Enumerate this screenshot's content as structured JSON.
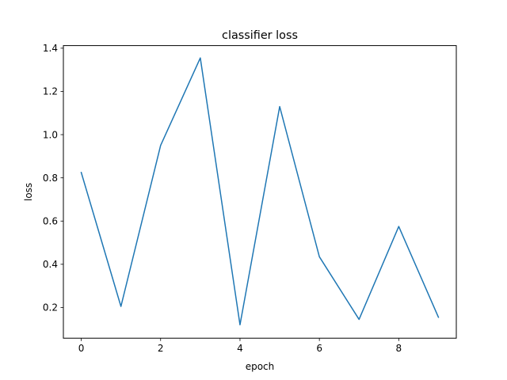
{
  "chart_data": {
    "type": "line",
    "title": "classifier loss",
    "xlabel": "epoch",
    "ylabel": "loss",
    "xlim": [
      -0.45,
      9.45
    ],
    "ylim": [
      0.058,
      1.412
    ],
    "xticks": [
      0,
      2,
      4,
      6,
      8
    ],
    "xtick_labels": [
      "0",
      "2",
      "4",
      "6",
      "8"
    ],
    "yticks": [
      0.2,
      0.4,
      0.6,
      0.8,
      1.0,
      1.2,
      1.4
    ],
    "ytick_labels": [
      "0.2",
      "0.4",
      "0.6",
      "0.8",
      "1.0",
      "1.2",
      "1.4"
    ],
    "grid": false,
    "series": [
      {
        "color": "#1f77b4",
        "x": [
          0,
          1,
          2,
          3,
          4,
          5,
          6,
          7,
          8,
          9
        ],
        "y": [
          0.825,
          0.205,
          0.95,
          1.355,
          0.12,
          1.13,
          0.435,
          0.145,
          0.575,
          0.155
        ]
      }
    ]
  }
}
